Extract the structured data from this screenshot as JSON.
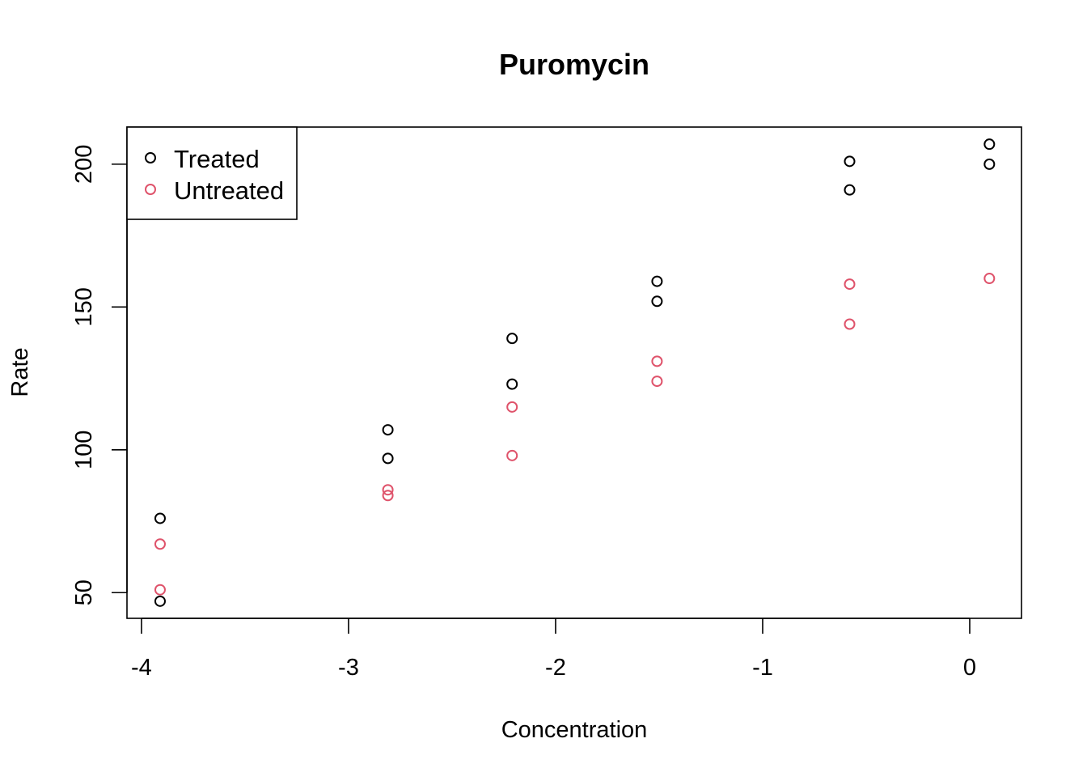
{
  "chart_data": {
    "type": "scatter",
    "title": "Puromycin",
    "xlabel": "Concentration",
    "ylabel": "Rate",
    "xlim": [
      -4.07,
      0.25
    ],
    "ylim": [
      41,
      213
    ],
    "x_ticks": [
      -4,
      -3,
      -2,
      -1,
      0
    ],
    "x_tick_labels": [
      "-4",
      "-3",
      "-2",
      "-1",
      "0"
    ],
    "y_ticks": [
      50,
      100,
      150,
      200
    ],
    "y_tick_labels": [
      "50",
      "100",
      "150",
      "200"
    ],
    "grid": false,
    "legend_position": "top-left",
    "marker": "open-circle",
    "series": [
      {
        "name": "Treated",
        "color": "#000000",
        "points": [
          {
            "x": -3.91,
            "y": 76
          },
          {
            "x": -3.91,
            "y": 47
          },
          {
            "x": -2.81,
            "y": 97
          },
          {
            "x": -2.81,
            "y": 107
          },
          {
            "x": -2.21,
            "y": 123
          },
          {
            "x": -2.21,
            "y": 139
          },
          {
            "x": -1.51,
            "y": 159
          },
          {
            "x": -1.51,
            "y": 152
          },
          {
            "x": -0.58,
            "y": 191
          },
          {
            "x": -0.58,
            "y": 201
          },
          {
            "x": 0.095,
            "y": 207
          },
          {
            "x": 0.095,
            "y": 200
          }
        ]
      },
      {
        "name": "Untreated",
        "color": "#DF536B",
        "points": [
          {
            "x": -3.91,
            "y": 67
          },
          {
            "x": -3.91,
            "y": 51
          },
          {
            "x": -2.81,
            "y": 84
          },
          {
            "x": -2.81,
            "y": 86
          },
          {
            "x": -2.21,
            "y": 98
          },
          {
            "x": -2.21,
            "y": 115
          },
          {
            "x": -1.51,
            "y": 131
          },
          {
            "x": -1.51,
            "y": 124
          },
          {
            "x": -0.58,
            "y": 144
          },
          {
            "x": -0.58,
            "y": 158
          },
          {
            "x": 0.095,
            "y": 160
          }
        ]
      }
    ]
  }
}
